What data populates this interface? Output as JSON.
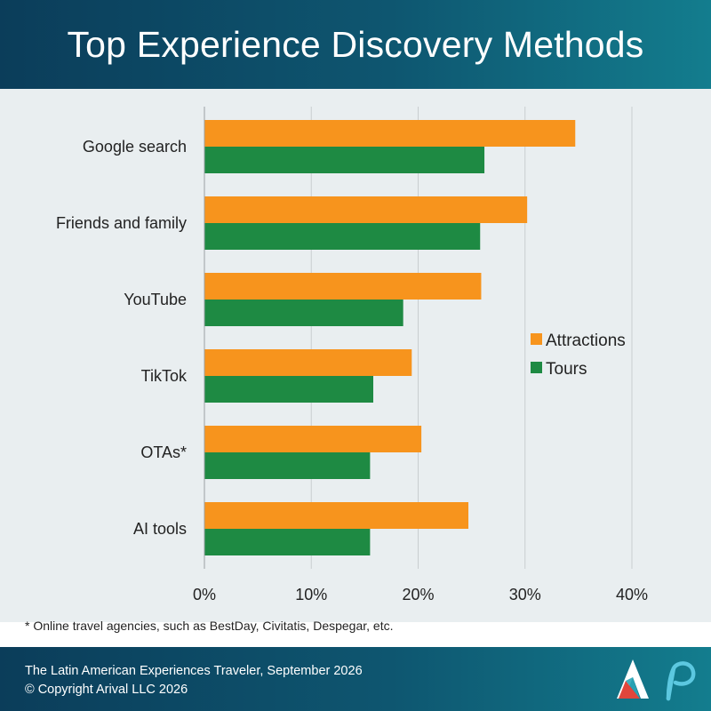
{
  "header": {
    "title": "Top Experience Discovery Methods"
  },
  "footnote": "* Online travel agencies, such as BestDay, Civitatis, Despegar, etc.",
  "footer": {
    "source": "The Latin American Experiences Traveler, September 2026",
    "copyright": "© Copyright Arival LLC 2026"
  },
  "colors": {
    "attractions": "#f7941d",
    "tours": "#1e8a43",
    "header_bg": "#0e5670",
    "plot_bg": "#e9eef0",
    "grid": "#c9cdd0"
  },
  "logos": [
    "arival-logo",
    "p-logo"
  ],
  "chart_data": {
    "type": "bar",
    "orientation": "horizontal",
    "categories": [
      "Google search",
      "Friends and family",
      "YouTube",
      "TikTok",
      "OTAs*",
      "AI tools"
    ],
    "series": [
      {
        "name": "Attractions",
        "values": [
          34.7,
          30.2,
          25.9,
          19.4,
          20.3,
          24.7
        ]
      },
      {
        "name": "Tours",
        "values": [
          26.2,
          25.8,
          18.6,
          15.8,
          15.5,
          15.5
        ]
      }
    ],
    "xlim": [
      0,
      40
    ],
    "xticks": [
      "0%",
      "10%",
      "20%",
      "30%",
      "40%"
    ],
    "grid": true,
    "legend_position": "right"
  }
}
